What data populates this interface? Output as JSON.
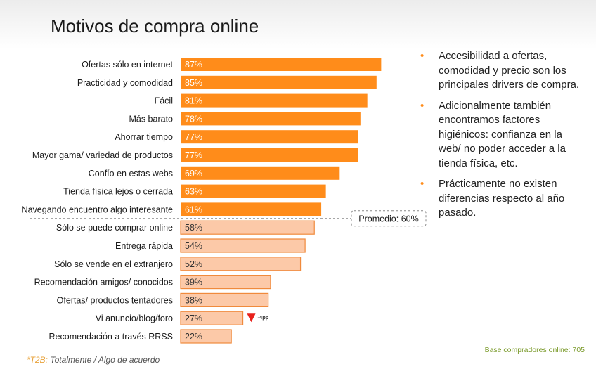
{
  "title": "Motivos de compra online",
  "chart_data": {
    "type": "bar",
    "orientation": "horizontal",
    "categories": [
      "Ofertas sólo en internet",
      "Practicidad y comodidad",
      "Fácil",
      "Más barato",
      "Ahorrar tiempo",
      "Mayor gama/ variedad de productos",
      "Confío en estas webs",
      "Tienda física lejos o  cerrada",
      "Navegando encuentro algo interesante",
      "Sólo se puede comprar online",
      "Entrega rápida",
      "Sólo se vende en el extranjero",
      "Recomendación amigos/ conocidos",
      "Ofertas/ productos tentadores",
      "Vi anuncio/blog/foro",
      "Recomendación a través RRSS"
    ],
    "values": [
      87,
      85,
      81,
      78,
      77,
      77,
      69,
      63,
      61,
      58,
      54,
      52,
      39,
      38,
      27,
      22
    ],
    "value_labels": [
      "87%",
      "85%",
      "81%",
      "78%",
      "77%",
      "77%",
      "69%",
      "63%",
      "61%",
      "58%",
      "54%",
      "52%",
      "39%",
      "38%",
      "27%",
      "22%"
    ],
    "xlim": [
      0,
      100
    ],
    "grid": false,
    "colors": {
      "above_average": "#ff8c1a",
      "below_average_fill": "#fcc9a8",
      "below_average_border": "#f08a3c",
      "average_line": "#888888",
      "change_marker": "#e8211b"
    },
    "average": {
      "value": 60,
      "label": "Promedio: 60%"
    },
    "annotations": [
      {
        "category": "Vi anuncio/blog/foro",
        "marker": "down-triangle",
        "text": "-4pp"
      }
    ]
  },
  "bullets": [
    "Accesibilidad a ofertas, comodidad y precio son los principales drivers de compra.",
    "Adicionalmente también encontramos factores higiénicos: confianza en la web/ no poder acceder a la tienda física, etc.",
    "Prácticamente no existen diferencias respecto al año pasado."
  ],
  "base_note": "Base compradores online: 705",
  "footnote": {
    "code": "*T2B:",
    "text": " Totalmente / Algo de acuerdo"
  }
}
